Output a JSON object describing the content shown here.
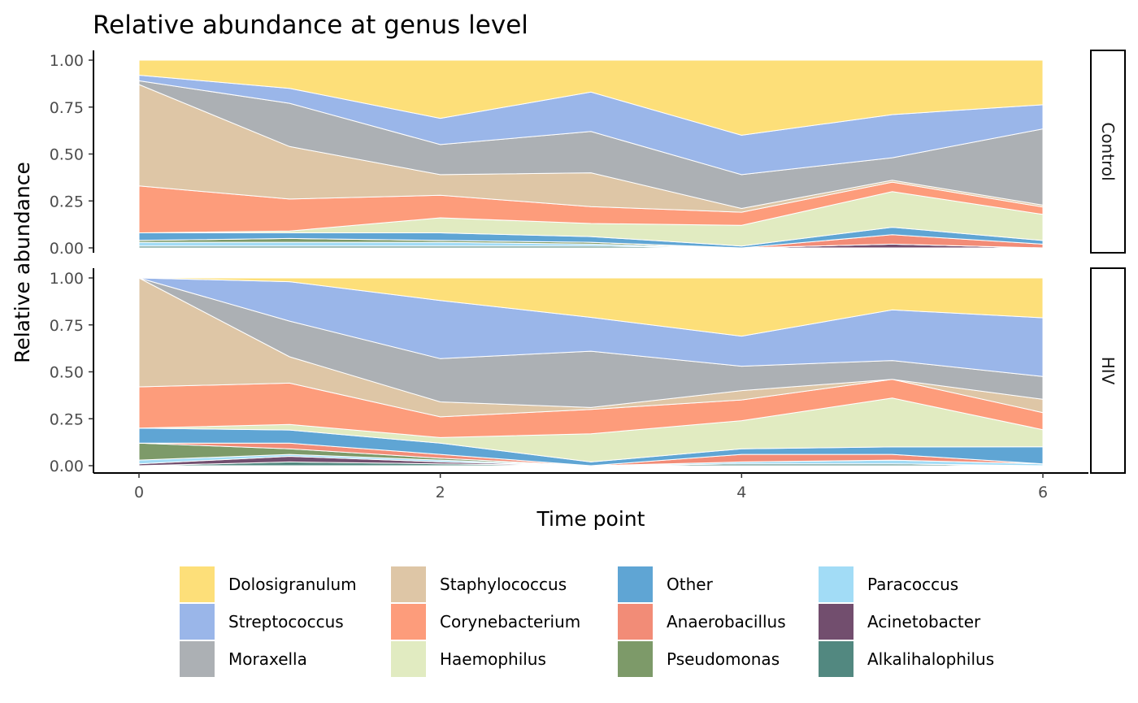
{
  "chart_data": {
    "type": "area",
    "title": "Relative abundance at genus level",
    "xlabel": "Time point",
    "ylabel": "Relative abundance",
    "xlim": [
      0,
      6
    ],
    "ylim": [
      0,
      1
    ],
    "x_ticks": [
      0,
      2,
      4,
      6
    ],
    "y_tick_labels": [
      "0.00",
      "0.25",
      "0.50",
      "0.75",
      "1.00"
    ],
    "stacked": true,
    "grid": false,
    "legend_position": "bottom",
    "x": [
      0,
      1,
      2,
      3,
      4,
      5,
      6
    ],
    "series": [
      {
        "name": "Dolosigranulum",
        "color": "#FDDF79"
      },
      {
        "name": "Streptococcus",
        "color": "#9AB6E9"
      },
      {
        "name": "Moraxella",
        "color": "#ACB0B4"
      },
      {
        "name": "Staphylococcus",
        "color": "#DEC6A6"
      },
      {
        "name": "Corynebacterium",
        "color": "#FD9C7B"
      },
      {
        "name": "Haemophilus",
        "color": "#E1EBC1"
      },
      {
        "name": "Other",
        "color": "#5FA5D4"
      },
      {
        "name": "Anaerobacillus",
        "color": "#F28C77"
      },
      {
        "name": "Pseudomonas",
        "color": "#7D9A69"
      },
      {
        "name": "Paracoccus",
        "color": "#A2DCF6"
      },
      {
        "name": "Acinetobacter",
        "color": "#724E6E"
      },
      {
        "name": "Alkalihalophilus",
        "color": "#528880"
      }
    ],
    "panels": [
      {
        "label": "Control",
        "values": {
          "Dolosigranulum": [
            0.08,
            0.15,
            0.31,
            0.17,
            0.4,
            0.29,
            0.24
          ],
          "Streptococcus": [
            0.03,
            0.08,
            0.14,
            0.21,
            0.21,
            0.23,
            0.13
          ],
          "Moraxella": [
            0.02,
            0.23,
            0.16,
            0.22,
            0.18,
            0.12,
            0.41
          ],
          "Staphylococcus": [
            0.54,
            0.28,
            0.11,
            0.18,
            0.02,
            0.01,
            0.01
          ],
          "Corynebacterium": [
            0.25,
            0.17,
            0.12,
            0.09,
            0.07,
            0.05,
            0.04
          ],
          "Haemophilus": [
            0.0,
            0.01,
            0.08,
            0.07,
            0.11,
            0.19,
            0.14
          ],
          "Other": [
            0.04,
            0.03,
            0.04,
            0.03,
            0.01,
            0.04,
            0.02
          ],
          "Anaerobacillus": [
            0.0,
            0.0,
            0.0,
            0.0,
            0.0,
            0.05,
            0.02
          ],
          "Pseudomonas": [
            0.01,
            0.02,
            0.01,
            0.01,
            0.0,
            0.0,
            0.0
          ],
          "Paracoccus": [
            0.02,
            0.02,
            0.02,
            0.01,
            0.0,
            0.0,
            0.0
          ],
          "Acinetobacter": [
            0.0,
            0.0,
            0.0,
            0.0,
            0.0,
            0.02,
            0.0
          ],
          "Alkalihalophilus": [
            0.01,
            0.01,
            0.01,
            0.01,
            0.0,
            0.0,
            0.0
          ]
        }
      },
      {
        "label": "HIV",
        "values": {
          "Dolosigranulum": [
            0.0,
            0.02,
            0.12,
            0.21,
            0.31,
            0.17,
            0.21
          ],
          "Streptococcus": [
            0.0,
            0.21,
            0.31,
            0.18,
            0.16,
            0.27,
            0.31
          ],
          "Moraxella": [
            0.0,
            0.19,
            0.23,
            0.3,
            0.13,
            0.1,
            0.12
          ],
          "Staphylococcus": [
            0.58,
            0.14,
            0.08,
            0.01,
            0.05,
            0.0,
            0.07
          ],
          "Corynebacterium": [
            0.22,
            0.22,
            0.11,
            0.13,
            0.11,
            0.1,
            0.09
          ],
          "Haemophilus": [
            0.0,
            0.03,
            0.03,
            0.15,
            0.15,
            0.26,
            0.09
          ],
          "Other": [
            0.08,
            0.07,
            0.06,
            0.02,
            0.03,
            0.04,
            0.09
          ],
          "Anaerobacillus": [
            0.0,
            0.03,
            0.02,
            0.0,
            0.04,
            0.03,
            0.0
          ],
          "Pseudomonas": [
            0.09,
            0.03,
            0.01,
            0.0,
            0.0,
            0.0,
            0.0
          ],
          "Paracoccus": [
            0.02,
            0.01,
            0.01,
            0.0,
            0.01,
            0.02,
            0.01
          ],
          "Acinetobacter": [
            0.01,
            0.03,
            0.01,
            0.0,
            0.0,
            0.0,
            0.0
          ],
          "Alkalihalophilus": [
            0.0,
            0.02,
            0.01,
            0.0,
            0.01,
            0.01,
            0.0
          ]
        }
      }
    ]
  }
}
